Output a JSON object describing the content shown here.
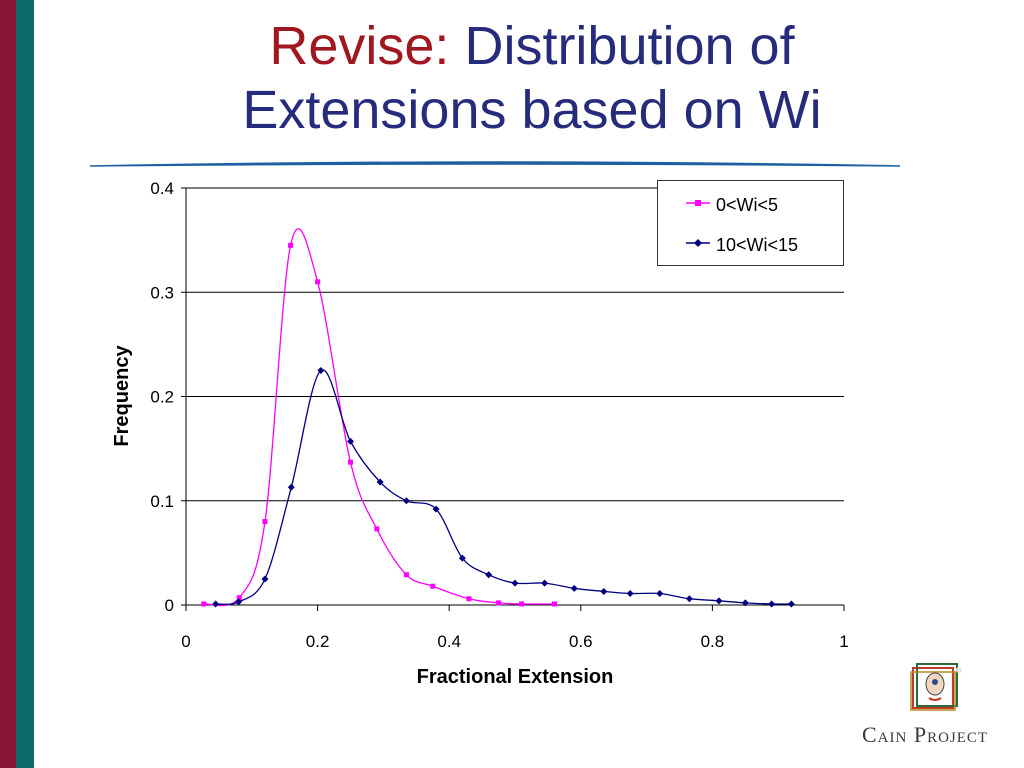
{
  "slide": {
    "title_prefix": "Revise:",
    "title_rest_line1": "Distribution of",
    "title_line2": "Extensions based on Wi",
    "logo_text": "Cain Project"
  },
  "chart_data": {
    "type": "line",
    "xlabel": "Fractional Extension",
    "ylabel": "Frequency",
    "xlim": [
      0,
      1
    ],
    "ylim": [
      0,
      0.4
    ],
    "xticks": [
      "0",
      "0.2",
      "0.4",
      "0.6",
      "0.8",
      "1"
    ],
    "yticks": [
      "0",
      "0.1",
      "0.2",
      "0.3",
      "0.4"
    ],
    "grid": "horizontal",
    "legend_position": "top-right",
    "series": [
      {
        "name": "0<Wi<5",
        "color": "#ff00ff",
        "marker": "square",
        "x": [
          0.027,
          0.081,
          0.12,
          0.159,
          0.2,
          0.25,
          0.29,
          0.335,
          0.375,
          0.43,
          0.475,
          0.51,
          0.56
        ],
        "y": [
          0.001,
          0.007,
          0.08,
          0.345,
          0.31,
          0.137,
          0.073,
          0.029,
          0.018,
          0.006,
          0.002,
          0.001,
          0.001
        ]
      },
      {
        "name": "10<Wi<15",
        "color": "#000080",
        "marker": "diamond",
        "x": [
          0.045,
          0.08,
          0.12,
          0.16,
          0.205,
          0.25,
          0.295,
          0.335,
          0.38,
          0.42,
          0.46,
          0.5,
          0.545,
          0.59,
          0.635,
          0.675,
          0.72,
          0.765,
          0.81,
          0.85,
          0.89,
          0.92
        ],
        "y": [
          0.001,
          0.003,
          0.025,
          0.113,
          0.225,
          0.157,
          0.118,
          0.1,
          0.092,
          0.045,
          0.029,
          0.021,
          0.021,
          0.016,
          0.013,
          0.011,
          0.011,
          0.006,
          0.004,
          0.002,
          0.001,
          0.001
        ]
      }
    ]
  }
}
